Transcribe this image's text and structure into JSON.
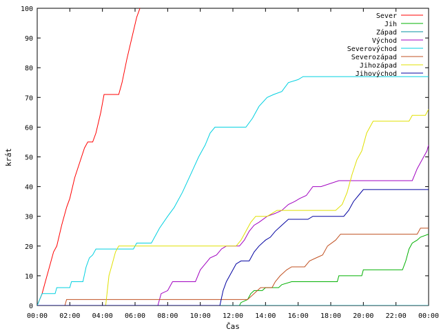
{
  "chart_data": {
    "type": "line",
    "title": "",
    "xlabel": "Čas",
    "ylabel": "krát",
    "xlim": [
      0,
      24
    ],
    "ylim": [
      0,
      100
    ],
    "x_ticks": [
      "00:00",
      "02:00",
      "04:00",
      "06:00",
      "08:00",
      "10:00",
      "12:00",
      "14:00",
      "16:00",
      "18:00",
      "20:00",
      "22:00",
      "00:00"
    ],
    "y_ticks": [
      0,
      10,
      20,
      30,
      40,
      50,
      60,
      70,
      80,
      90,
      100
    ],
    "grid": false,
    "legend_position": "top-right",
    "series": [
      {
        "name": "Sever",
        "color": "#ff0000",
        "points": [
          [
            0,
            0
          ],
          [
            0.3,
            4
          ],
          [
            0.5,
            8
          ],
          [
            0.7,
            12
          ],
          [
            1.0,
            18
          ],
          [
            1.2,
            20
          ],
          [
            1.5,
            27
          ],
          [
            1.8,
            33
          ],
          [
            2.0,
            36
          ],
          [
            2.3,
            43
          ],
          [
            2.6,
            48
          ],
          [
            2.9,
            53
          ],
          [
            3.1,
            55
          ],
          [
            3.4,
            55
          ],
          [
            3.6,
            58
          ],
          [
            3.9,
            65
          ],
          [
            4.1,
            71
          ],
          [
            5.0,
            71
          ],
          [
            5.2,
            75
          ],
          [
            5.5,
            83
          ],
          [
            5.8,
            90
          ],
          [
            6.1,
            97
          ],
          [
            6.3,
            100
          ]
        ]
      },
      {
        "name": "Jih",
        "color": "#00b000",
        "points": [
          [
            0,
            0
          ],
          [
            12.4,
            0
          ],
          [
            12.5,
            1
          ],
          [
            12.9,
            2
          ],
          [
            13.1,
            4
          ],
          [
            13.3,
            5
          ],
          [
            13.8,
            5
          ],
          [
            14.0,
            6
          ],
          [
            14.8,
            6
          ],
          [
            15.0,
            7
          ],
          [
            15.6,
            8
          ],
          [
            18.4,
            8
          ],
          [
            18.5,
            10
          ],
          [
            19.9,
            10
          ],
          [
            20.0,
            12
          ],
          [
            22.4,
            12
          ],
          [
            22.6,
            15
          ],
          [
            22.8,
            19
          ],
          [
            23.0,
            21
          ],
          [
            23.3,
            22
          ],
          [
            23.5,
            23
          ],
          [
            24,
            24
          ]
        ]
      },
      {
        "name": "Západ",
        "color": "#0090a0",
        "points": [
          [
            0,
            0
          ],
          [
            24,
            0
          ]
        ]
      },
      {
        "name": "Východ",
        "color": "#a000c0",
        "points": [
          [
            0,
            0
          ],
          [
            7.4,
            0
          ],
          [
            7.5,
            2
          ],
          [
            7.6,
            4
          ],
          [
            8.0,
            5
          ],
          [
            8.3,
            8
          ],
          [
            9.7,
            8
          ],
          [
            10.0,
            12
          ],
          [
            10.3,
            14
          ],
          [
            10.6,
            16
          ],
          [
            11.0,
            17
          ],
          [
            11.3,
            19
          ],
          [
            11.6,
            20
          ],
          [
            12.4,
            20
          ],
          [
            12.7,
            22
          ],
          [
            13.0,
            25
          ],
          [
            13.3,
            27
          ],
          [
            13.6,
            28
          ],
          [
            14.1,
            30
          ],
          [
            14.6,
            31
          ],
          [
            15.0,
            32
          ],
          [
            15.4,
            34
          ],
          [
            15.8,
            35
          ],
          [
            16.1,
            36
          ],
          [
            16.5,
            37
          ],
          [
            16.9,
            40
          ],
          [
            17.4,
            40
          ],
          [
            18.5,
            42
          ],
          [
            23.0,
            42
          ],
          [
            23.3,
            46
          ],
          [
            23.6,
            49
          ],
          [
            23.9,
            52
          ],
          [
            24,
            54
          ]
        ]
      },
      {
        "name": "Severovýchod",
        "color": "#00d0e0",
        "points": [
          [
            0,
            0
          ],
          [
            0.3,
            4
          ],
          [
            1.1,
            4
          ],
          [
            1.2,
            6
          ],
          [
            2.0,
            6
          ],
          [
            2.1,
            8
          ],
          [
            2.8,
            8
          ],
          [
            3.0,
            13
          ],
          [
            3.2,
            16
          ],
          [
            3.4,
            17
          ],
          [
            3.6,
            19
          ],
          [
            5.9,
            19
          ],
          [
            6.1,
            21
          ],
          [
            7.0,
            21
          ],
          [
            7.2,
            23
          ],
          [
            7.5,
            26
          ],
          [
            8.0,
            30
          ],
          [
            8.4,
            33
          ],
          [
            8.9,
            38
          ],
          [
            9.4,
            44
          ],
          [
            9.9,
            50
          ],
          [
            10.3,
            54
          ],
          [
            10.6,
            58
          ],
          [
            10.9,
            60
          ],
          [
            12.8,
            60
          ],
          [
            13.2,
            63
          ],
          [
            13.6,
            67
          ],
          [
            14.1,
            70
          ],
          [
            14.5,
            71
          ],
          [
            15.0,
            72
          ],
          [
            15.4,
            75
          ],
          [
            16.0,
            76
          ],
          [
            16.3,
            77
          ],
          [
            24,
            77
          ]
        ]
      },
      {
        "name": "Severozápad",
        "color": "#c05020",
        "points": [
          [
            0,
            0
          ],
          [
            1.7,
            0
          ],
          [
            1.8,
            2
          ],
          [
            12.9,
            2
          ],
          [
            13.1,
            3
          ],
          [
            13.5,
            5
          ],
          [
            13.7,
            6
          ],
          [
            14.4,
            6
          ],
          [
            14.6,
            8
          ],
          [
            14.9,
            10
          ],
          [
            15.3,
            12
          ],
          [
            15.6,
            13
          ],
          [
            16.4,
            13
          ],
          [
            16.7,
            15
          ],
          [
            17.1,
            16
          ],
          [
            17.5,
            17
          ],
          [
            17.8,
            20
          ],
          [
            18.3,
            22
          ],
          [
            18.6,
            24
          ],
          [
            23.3,
            24
          ],
          [
            23.5,
            26
          ],
          [
            24,
            26
          ]
        ]
      },
      {
        "name": "Jihozápad",
        "color": "#e0e000",
        "points": [
          [
            0,
            0
          ],
          [
            4.2,
            0
          ],
          [
            4.4,
            10
          ],
          [
            4.6,
            14
          ],
          [
            4.8,
            18
          ],
          [
            5.0,
            20
          ],
          [
            12.2,
            20
          ],
          [
            12.5,
            22
          ],
          [
            12.8,
            25
          ],
          [
            13.1,
            28
          ],
          [
            13.4,
            30
          ],
          [
            14.1,
            30
          ],
          [
            14.4,
            31
          ],
          [
            14.7,
            32
          ],
          [
            18.3,
            32
          ],
          [
            18.7,
            34
          ],
          [
            19.0,
            38
          ],
          [
            19.3,
            44
          ],
          [
            19.6,
            49
          ],
          [
            19.9,
            52
          ],
          [
            20.2,
            58
          ],
          [
            20.6,
            62
          ],
          [
            22.8,
            62
          ],
          [
            23.0,
            64
          ],
          [
            23.8,
            64
          ],
          [
            24,
            66
          ]
        ]
      },
      {
        "name": "Jihovýchod",
        "color": "#0000a0",
        "points": [
          [
            0,
            0
          ],
          [
            11.2,
            0
          ],
          [
            11.4,
            5
          ],
          [
            11.6,
            8
          ],
          [
            11.9,
            11
          ],
          [
            12.2,
            14
          ],
          [
            12.5,
            15
          ],
          [
            13.0,
            15
          ],
          [
            13.3,
            18
          ],
          [
            13.6,
            20
          ],
          [
            14.0,
            22
          ],
          [
            14.3,
            23
          ],
          [
            14.6,
            25
          ],
          [
            15.0,
            27
          ],
          [
            15.4,
            29
          ],
          [
            16.6,
            29
          ],
          [
            16.9,
            30
          ],
          [
            18.8,
            30
          ],
          [
            19.1,
            32
          ],
          [
            19.4,
            35
          ],
          [
            19.7,
            37
          ],
          [
            20.0,
            39
          ],
          [
            24,
            39
          ]
        ]
      }
    ]
  }
}
